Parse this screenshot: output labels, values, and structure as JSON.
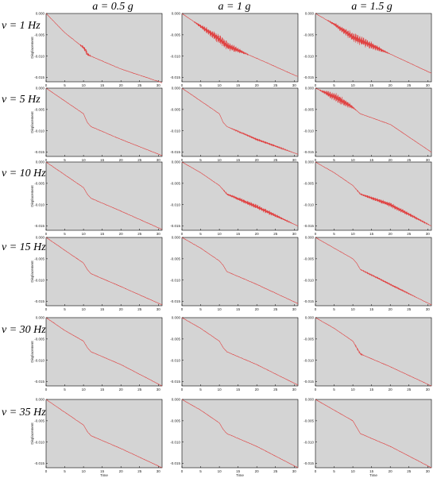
{
  "column_headers": [
    "a = 0.5 g",
    "a = 1 g",
    "a = 1.5 g"
  ],
  "row_headers": [
    "v = 1 Hz",
    "v = 5 Hz",
    "v = 10 Hz",
    "v = 15 Hz",
    "v = 30 Hz",
    "v = 35 Hz"
  ],
  "colors": {
    "plot_background": "#d4d4d4",
    "series": "#e04040",
    "axis": "#000000"
  },
  "chart_data": {
    "type": "line",
    "layout": "6x3 small-multiples grid",
    "xlabel": "Time",
    "ylabel": "Displacement",
    "xlim": [
      0,
      31
    ],
    "ylim": [
      -0.016,
      0.0
    ],
    "x_ticks": [
      "0",
      "5",
      "10",
      "15",
      "20",
      "25",
      "30"
    ],
    "y_ticks": [
      "0.000",
      "-0.005",
      "-0.010",
      "-0.015"
    ],
    "grid": false,
    "legend": "none",
    "panels": [
      {
        "row": "v = 1 Hz",
        "col": "a = 0.5 g",
        "x": [
          0,
          5,
          10,
          10.5,
          11,
          12,
          20,
          31
        ],
        "y": [
          0.0,
          -0.0045,
          -0.008,
          -0.0085,
          -0.0095,
          -0.01,
          -0.013,
          -0.0162
        ],
        "oscillation": "moderate near t=10"
      },
      {
        "row": "v = 1 Hz",
        "col": "a = 1 g",
        "x": [
          0,
          5,
          10,
          12,
          20,
          31
        ],
        "y": [
          0.0,
          -0.003,
          -0.006,
          -0.0075,
          -0.0105,
          -0.0148
        ],
        "oscillation": "strong t=3-18"
      },
      {
        "row": "v = 1 Hz",
        "col": "a = 1.5 g",
        "x": [
          0,
          5,
          10,
          15,
          20,
          31
        ],
        "y": [
          0.0,
          -0.0025,
          -0.0055,
          -0.0075,
          -0.0095,
          -0.014
        ],
        "oscillation": "strong t=3-20"
      },
      {
        "row": "v = 5 Hz",
        "col": "a = 0.5 g",
        "x": [
          0,
          5,
          10,
          11,
          12,
          20,
          31
        ],
        "y": [
          0.0,
          -0.003,
          -0.006,
          -0.008,
          -0.009,
          -0.012,
          -0.0158
        ]
      },
      {
        "row": "v = 5 Hz",
        "col": "a = 1 g",
        "x": [
          0,
          5,
          10,
          11,
          12,
          20,
          31
        ],
        "y": [
          0.0,
          -0.003,
          -0.006,
          -0.008,
          -0.009,
          -0.012,
          -0.0155
        ],
        "oscillation": "noisy t=12-30"
      },
      {
        "row": "v = 5 Hz",
        "col": "a = 1.5 g",
        "x": [
          0,
          5,
          10,
          12,
          20,
          31
        ],
        "y": [
          0.0,
          -0.002,
          -0.0045,
          -0.006,
          -0.0085,
          -0.015
        ],
        "oscillation": "strong t=1-11"
      },
      {
        "row": "v = 10 Hz",
        "col": "a = 0.5 g",
        "x": [
          0,
          5,
          10,
          11,
          12,
          20,
          31
        ],
        "y": [
          0.0,
          -0.003,
          -0.006,
          -0.0075,
          -0.0085,
          -0.0115,
          -0.0158
        ]
      },
      {
        "row": "v = 10 Hz",
        "col": "a = 1 g",
        "x": [
          0,
          5,
          10,
          11,
          12,
          20,
          31
        ],
        "y": [
          0.0,
          -0.0025,
          -0.0055,
          -0.0065,
          -0.0075,
          -0.0105,
          -0.015
        ],
        "oscillation": "moderate t=10-30"
      },
      {
        "row": "v = 10 Hz",
        "col": "a = 1.5 g",
        "x": [
          0,
          5,
          10,
          11,
          12,
          20,
          31
        ],
        "y": [
          0.0,
          -0.0025,
          -0.0055,
          -0.0065,
          -0.0075,
          -0.01,
          -0.015
        ],
        "oscillation": "moderate t=10-31"
      },
      {
        "row": "v = 15 Hz",
        "col": "a = 0.5 g",
        "x": [
          0,
          5,
          10,
          11,
          12,
          20,
          31
        ],
        "y": [
          0.0,
          -0.003,
          -0.006,
          -0.0075,
          -0.0085,
          -0.0115,
          -0.0158
        ]
      },
      {
        "row": "v = 15 Hz",
        "col": "a = 1 g",
        "x": [
          0,
          5,
          10,
          11,
          12,
          20,
          31
        ],
        "y": [
          0.0,
          -0.0025,
          -0.0055,
          -0.0065,
          -0.008,
          -0.011,
          -0.0155
        ]
      },
      {
        "row": "v = 15 Hz",
        "col": "a = 1.5 g",
        "x": [
          0,
          5,
          10,
          11,
          12,
          20,
          31
        ],
        "y": [
          0.0,
          -0.0025,
          -0.005,
          -0.006,
          -0.0075,
          -0.011,
          -0.0158
        ],
        "oscillation": "slight t=10-28"
      },
      {
        "row": "v = 30 Hz",
        "col": "a = 0.5 g",
        "x": [
          0,
          5,
          10,
          11,
          12,
          20,
          31
        ],
        "y": [
          0.0,
          -0.003,
          -0.0055,
          -0.007,
          -0.008,
          -0.011,
          -0.016
        ]
      },
      {
        "row": "v = 30 Hz",
        "col": "a = 1 g",
        "x": [
          0,
          5,
          10,
          11,
          12,
          20,
          31
        ],
        "y": [
          0.0,
          -0.0025,
          -0.0055,
          -0.007,
          -0.008,
          -0.011,
          -0.0158
        ]
      },
      {
        "row": "v = 30 Hz",
        "col": "a = 1.5 g",
        "x": [
          0,
          5,
          10,
          11,
          12,
          20,
          31
        ],
        "y": [
          0.0,
          -0.0025,
          -0.0055,
          -0.007,
          -0.0085,
          -0.0115,
          -0.016
        ],
        "oscillation": "slight t=10-13"
      },
      {
        "row": "v = 35 Hz",
        "col": "a = 0.5 g",
        "x": [
          0,
          5,
          10,
          11,
          12,
          20,
          31
        ],
        "y": [
          0.0,
          -0.003,
          -0.006,
          -0.0075,
          -0.0085,
          -0.0115,
          -0.016
        ]
      },
      {
        "row": "v = 35 Hz",
        "col": "a = 1 g",
        "x": [
          0,
          5,
          10,
          11,
          12,
          20,
          31
        ],
        "y": [
          0.0,
          -0.0025,
          -0.0055,
          -0.007,
          -0.008,
          -0.011,
          -0.016
        ]
      },
      {
        "row": "v = 35 Hz",
        "col": "a = 1.5 g",
        "x": [
          0,
          5,
          10,
          11,
          12,
          20,
          31
        ],
        "y": [
          0.0,
          -0.0025,
          -0.005,
          -0.0065,
          -0.008,
          -0.011,
          -0.016
        ]
      }
    ]
  }
}
